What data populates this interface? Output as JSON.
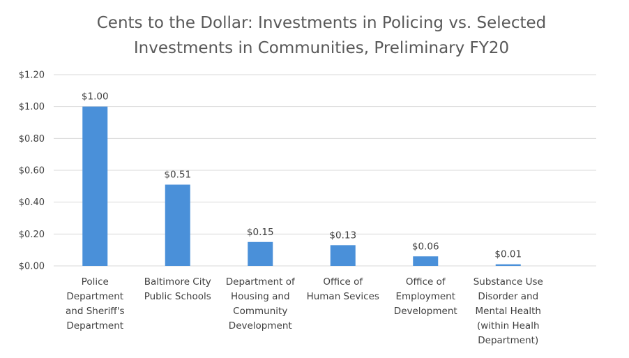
{
  "chart_data": {
    "type": "bar",
    "title_lines": [
      "Cents to the Dollar: Investments in Policing vs. Selected",
      "Investments in Communities,  Preliminary FY20"
    ],
    "categories": [
      [
        "Police",
        "Department",
        "and Sheriff's",
        "Department"
      ],
      [
        "Baltimore City",
        "Public Schools"
      ],
      [
        "Department of",
        "Housing and",
        "Community",
        "Development"
      ],
      [
        "Office of",
        "Human Sevices"
      ],
      [
        "Office of",
        "Employment",
        "Development"
      ],
      [
        "Substance Use",
        "Disorder and",
        "Mental Health",
        "(within Healh",
        "Department)"
      ]
    ],
    "values": [
      1.0,
      0.51,
      0.15,
      0.13,
      0.06,
      0.01
    ],
    "data_labels": [
      "$1.00",
      "$0.51",
      "$0.15",
      "$0.13",
      "$0.06",
      "$0.01"
    ],
    "y_ticks": [
      "$0.00",
      "$0.20",
      "$0.40",
      "$0.60",
      "$0.80",
      "$1.00",
      "$1.20"
    ],
    "ylim": [
      0,
      1.2
    ],
    "grid": true,
    "legend": "none",
    "bar_color": "#4a90d9"
  }
}
